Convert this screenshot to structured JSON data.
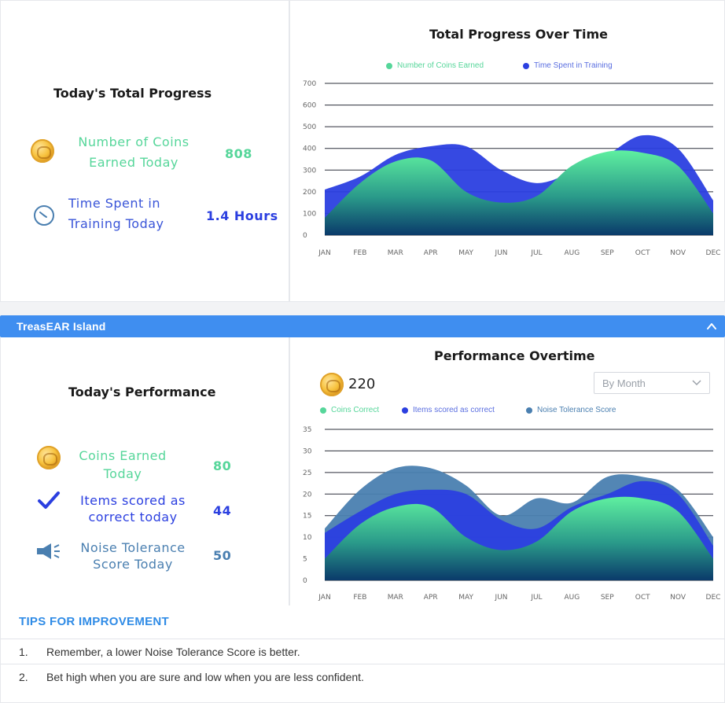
{
  "total_progress": {
    "title": "Today's Total Progress",
    "coins_label": "Number of Coins Earned Today",
    "coins_value": "808",
    "time_label": "Time Spent in Training Today",
    "time_value": "1.4 Hours"
  },
  "progress_chart": {
    "title": "Total Progress Over Time",
    "legend": [
      "Number of Coins Earned",
      "Time Spent in Training"
    ]
  },
  "section": {
    "title": "TreasEAR Island"
  },
  "performance": {
    "title": "Today's Performance",
    "coins_label": "Coins Earned Today",
    "coins_value": "80",
    "items_label": "Items scored as correct today",
    "items_value": "44",
    "noise_label": "Noise Tolerance Score Today",
    "noise_value": "50"
  },
  "performance_chart": {
    "title": "Performance Overtime",
    "coin_total": "220",
    "select_value": "By Month",
    "legend": [
      "Coins Correct",
      "Items scored as correct",
      "Noise Tolerance Score"
    ]
  },
  "tips": {
    "title": "TIPS FOR IMPROVEMENT",
    "items": [
      {
        "num": "1.",
        "text": "Remember,  a lower Noise Tolerance Score is better."
      },
      {
        "num": "2.",
        "text": "Bet high when you are sure and low when you are less confident."
      }
    ]
  },
  "colors": {
    "green": "#56d69a",
    "blue": "#2b3fe0",
    "steel": "#4a7fb0",
    "accent": "#3f8ef0"
  },
  "icons": [
    "coin-icon",
    "clock-icon",
    "checkmark-icon",
    "megaphone-icon",
    "chevron-up-icon",
    "chevron-down-icon"
  ],
  "chart_data": [
    {
      "type": "area",
      "categories": [
        "JAN",
        "FEB",
        "MAR",
        "APR",
        "MAY",
        "JUN",
        "JUL",
        "AUG",
        "SEP",
        "OCT",
        "NOV",
        "DEC"
      ],
      "ylim": [
        0,
        700
      ],
      "yticks": [
        0,
        100,
        200,
        300,
        400,
        500,
        600,
        700
      ],
      "series": [
        {
          "name": "Number of Coins Earned",
          "color": "#56d69a",
          "values": [
            80,
            240,
            340,
            345,
            200,
            150,
            180,
            320,
            385,
            380,
            320,
            100
          ]
        },
        {
          "name": "Time Spent in Training",
          "color": "#2b3fe0",
          "values": [
            210,
            270,
            370,
            410,
            410,
            300,
            240,
            290,
            370,
            460,
            400,
            160
          ]
        }
      ]
    },
    {
      "type": "area",
      "categories": [
        "JAN",
        "FEB",
        "MAR",
        "APR",
        "MAY",
        "JUN",
        "JUL",
        "AUG",
        "SEP",
        "OCT",
        "NOV",
        "DEC"
      ],
      "ylim": [
        0,
        35
      ],
      "yticks": [
        0,
        5,
        10,
        15,
        20,
        25,
        30,
        35
      ],
      "series": [
        {
          "name": "Coins Correct",
          "color": "#56d69a",
          "values": [
            5,
            13,
            17,
            17,
            10,
            7,
            9,
            16,
            19,
            19,
            16,
            5
          ]
        },
        {
          "name": "Items scored as correct",
          "color": "#2b3fe0",
          "values": [
            11,
            16,
            20,
            21,
            20,
            14,
            12,
            17,
            20,
            23,
            20,
            8
          ]
        },
        {
          "name": "Noise Tolerance Score",
          "color": "#4a7fb0",
          "values": [
            12,
            21,
            26,
            26,
            22,
            15,
            19,
            18,
            24,
            24,
            21,
            10
          ]
        }
      ]
    }
  ]
}
